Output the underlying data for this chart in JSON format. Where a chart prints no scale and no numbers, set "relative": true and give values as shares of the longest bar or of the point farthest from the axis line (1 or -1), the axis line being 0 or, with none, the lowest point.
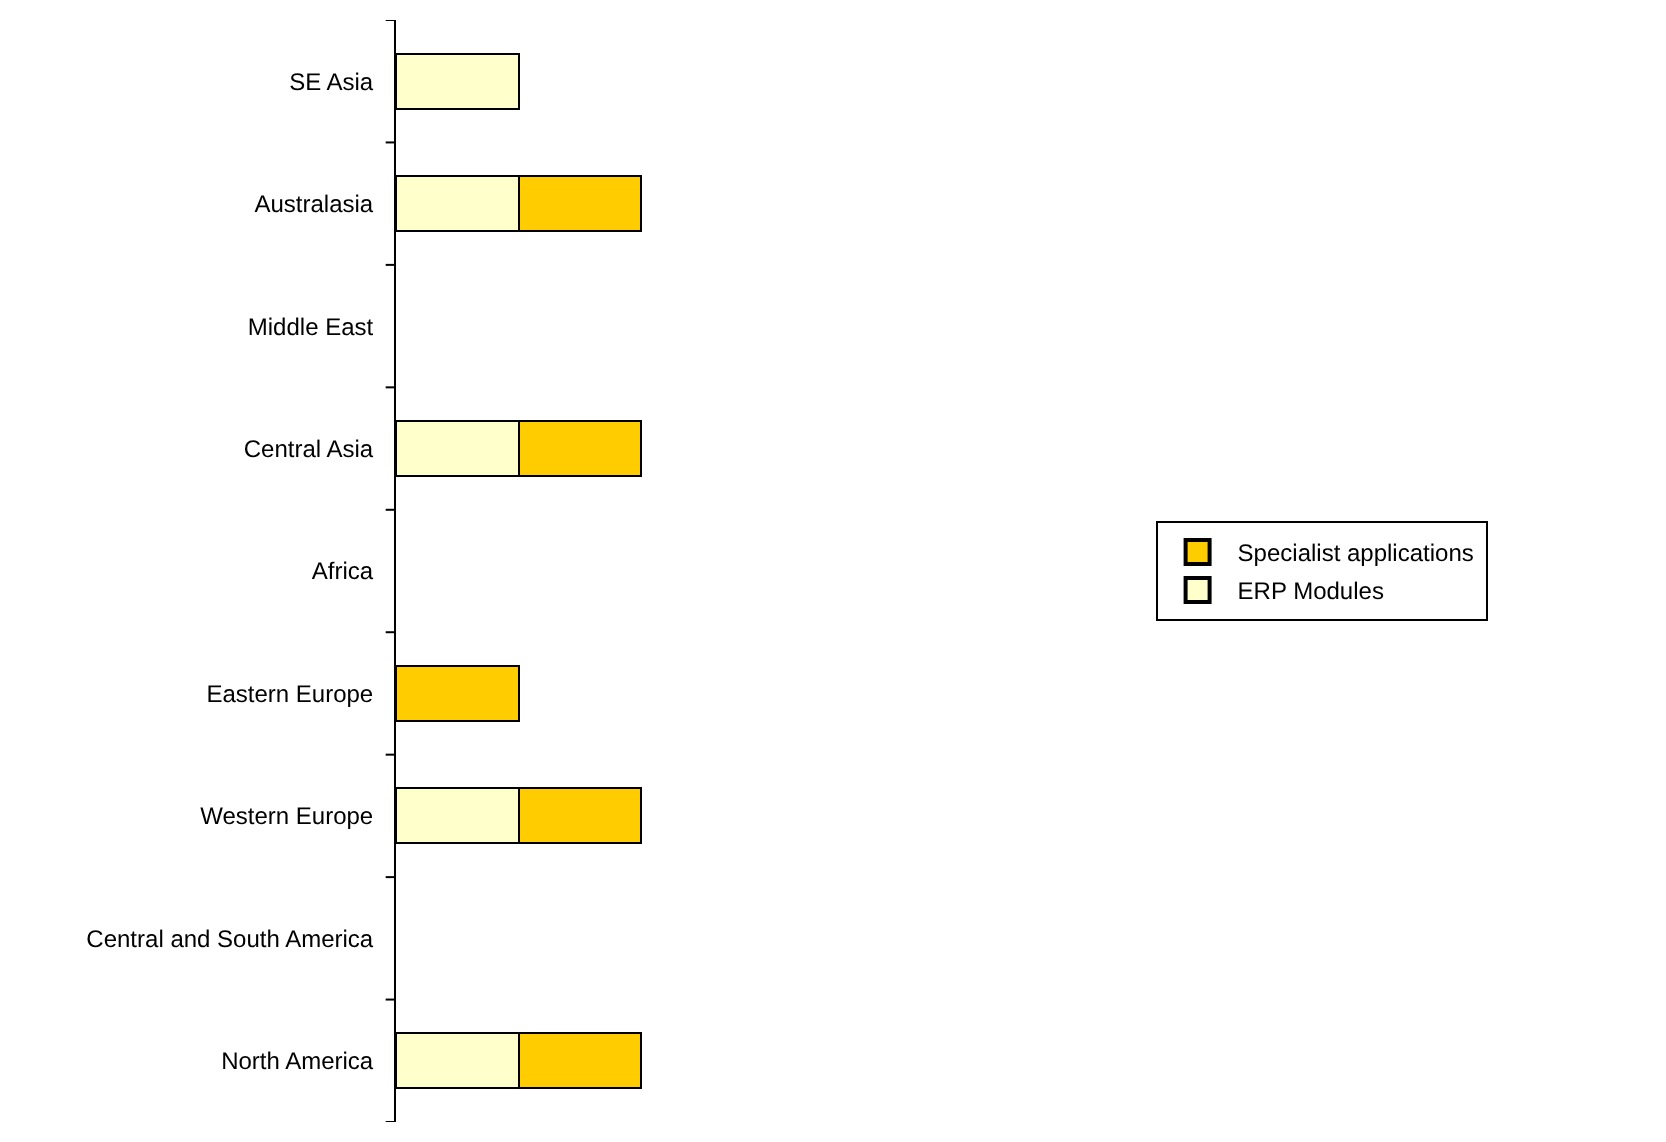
{
  "chart_data": {
    "type": "bar",
    "orientation": "horizontal",
    "stacked": true,
    "relative": true,
    "legend": "right",
    "categories": [
      "SE Asia",
      "Australasia",
      "Middle East",
      "Central Asia",
      "Africa",
      "Eastern Europe",
      "Western Europe",
      "Central and South America",
      "North America"
    ],
    "series": [
      {
        "name": "ERP Modules",
        "color": "#ffffcc",
        "values": [
          0.5,
          0.5,
          null,
          0.5,
          null,
          null,
          0.5,
          null,
          0.5
        ]
      },
      {
        "name": "Specialist applications",
        "color": "#ffcc00",
        "values": [
          null,
          0.5,
          null,
          0.5,
          null,
          0.5,
          0.5,
          null,
          0.5
        ]
      }
    ]
  }
}
